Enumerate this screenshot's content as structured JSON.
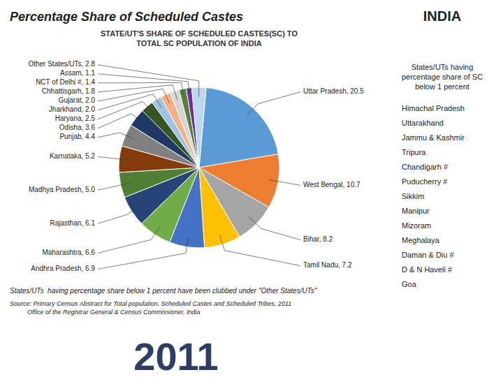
{
  "chart_data": {
    "type": "pie",
    "title": "Percentage Share of Scheduled Castes",
    "subtitle": "STATE/UT'S SHARE OF SCHEDULED CASTES(SC) TO\nTOTAL SC POPULATION OF INDIA",
    "india_label": "INDIA",
    "categories": [
      "Uttar Pradesh, 20.5",
      "West Bengal, 10.7",
      "Bihar, 8.2",
      "Tamil Nadu, 7.2",
      "Andhra Pradesh, 6.9",
      "Maharashtra, 6.6",
      "Rajasthan, 6.1",
      "Madhya Pradesh, 5.0",
      "Karnataka, 5.2",
      "Punjab, 4.4",
      "Odisha, 3.6",
      "Haryana, 2.5",
      "Jharkhand, 2.0",
      "Gujarat, 2.0",
      "Chhattisgarh, 1.8",
      "NCT of Delhi #, 1.4",
      "Assam, 1.1",
      "Other States/UTs, 2.8"
    ],
    "values": [
      20.5,
      10.7,
      8.2,
      7.2,
      6.9,
      6.6,
      6.1,
      5.0,
      5.2,
      4.4,
      3.6,
      2.5,
      2.0,
      2.0,
      1.8,
      1.4,
      1.1,
      2.8
    ],
    "colors": [
      "#5b9bd5",
      "#ed7d31",
      "#a5a5a5",
      "#ffc000",
      "#4472c4",
      "#70ad47",
      "#264478",
      "#507e32",
      "#843c0c",
      "#808080",
      "#1f3864",
      "#375623",
      "#9dc3e6",
      "#f4b183",
      "#d6d6d6",
      "#548235",
      "#7030a0",
      "#bdd7ee"
    ],
    "legend_title": "States/UTs having\npercentage share of SC\nbelow 1 percent",
    "legend_items": [
      "Himachal Pradesh",
      "Uttarakhand",
      "Jammu & Kashmir",
      "Tripura",
      "Chandigarh #",
      "Puducherry #",
      "Sikkim",
      "Manipur",
      "Mizoram",
      "Meghalaya",
      "Daman & Diu #",
      "D & N Haveli #",
      "Goa"
    ],
    "footnote": "States/UTs  having percentage share below 1 percent have been clubbed under \"Other States/UTs\"",
    "source": "Source: Primary Census Abstract for Total population, Scheduled Castes and Scheduled Tribes, 2011\n          Office of the Registrar General & Census Commissioner, India",
    "year_label": "2011"
  }
}
